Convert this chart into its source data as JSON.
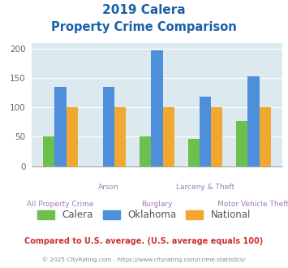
{
  "title_line1": "2019 Calera",
  "title_line2": "Property Crime Comparison",
  "categories": [
    "All Property Crime",
    "Arson",
    "Burglary",
    "Larceny & Theft",
    "Motor Vehicle Theft"
  ],
  "calera": [
    50,
    0,
    50,
    46,
    77
  ],
  "oklahoma": [
    135,
    135,
    197,
    119,
    153
  ],
  "national": [
    100,
    100,
    100,
    100,
    100
  ],
  "calera_color": "#6dbf4e",
  "oklahoma_color": "#4d8fdb",
  "national_color": "#f0a830",
  "bg_color": "#dce9ef",
  "title_color": "#1a5fa8",
  "xlabel_color": "#9e7db0",
  "legend_color": "#555555",
  "footer_text": "Compared to U.S. average. (U.S. average equals 100)",
  "footer_color": "#cc3333",
  "copyright_text": "© 2025 CityRating.com - https://www.cityrating.com/crime-statistics/",
  "copyright_color": "#888888",
  "ylim": [
    0,
    210
  ],
  "yticks": [
    0,
    50,
    100,
    150,
    200
  ],
  "bar_width": 0.24,
  "grid_color": "#ffffff"
}
